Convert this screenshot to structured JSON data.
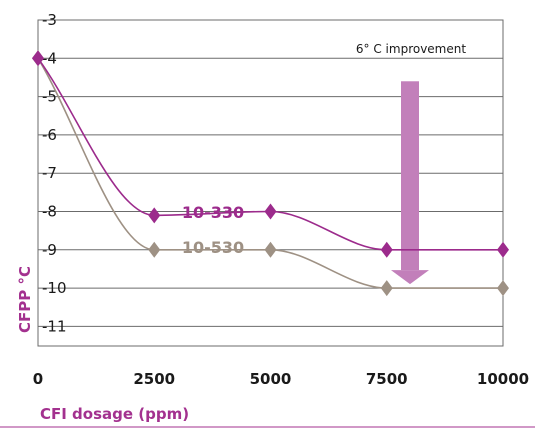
{
  "chart_data": {
    "type": "line",
    "xlabel": "CFI dosage (ppm)",
    "ylabel": "CFPP °C",
    "x": [
      0,
      2500,
      5000,
      7500,
      10000
    ],
    "xlim": [
      0,
      10000
    ],
    "ylim": [
      -11,
      -3
    ],
    "x_ticks": [
      "0",
      "2500",
      "5000",
      "7500",
      "10000"
    ],
    "y_ticks": [
      "-3",
      "-4",
      "-5",
      "-6",
      "-7",
      "-8",
      "-9",
      "-10",
      "-11"
    ],
    "grid": "horizontal",
    "series": [
      {
        "name": "10-330",
        "values": [
          -4,
          -8.1,
          -8,
          -9,
          -9
        ],
        "color": "#9c2b8c"
      },
      {
        "name": "10-530",
        "values": [
          -4,
          -9,
          -9,
          -10,
          -10
        ],
        "color": "#9e9184"
      }
    ],
    "annotation": {
      "text": "6° C improvement",
      "arrow_x": 8000,
      "arrow_from_y": -4.6,
      "arrow_to_y": -10,
      "color": "#c27fba"
    },
    "colors": {
      "axis_title": "#a3318f",
      "grid": "#6b6b6b",
      "footer_rule": "#a3318f"
    }
  }
}
